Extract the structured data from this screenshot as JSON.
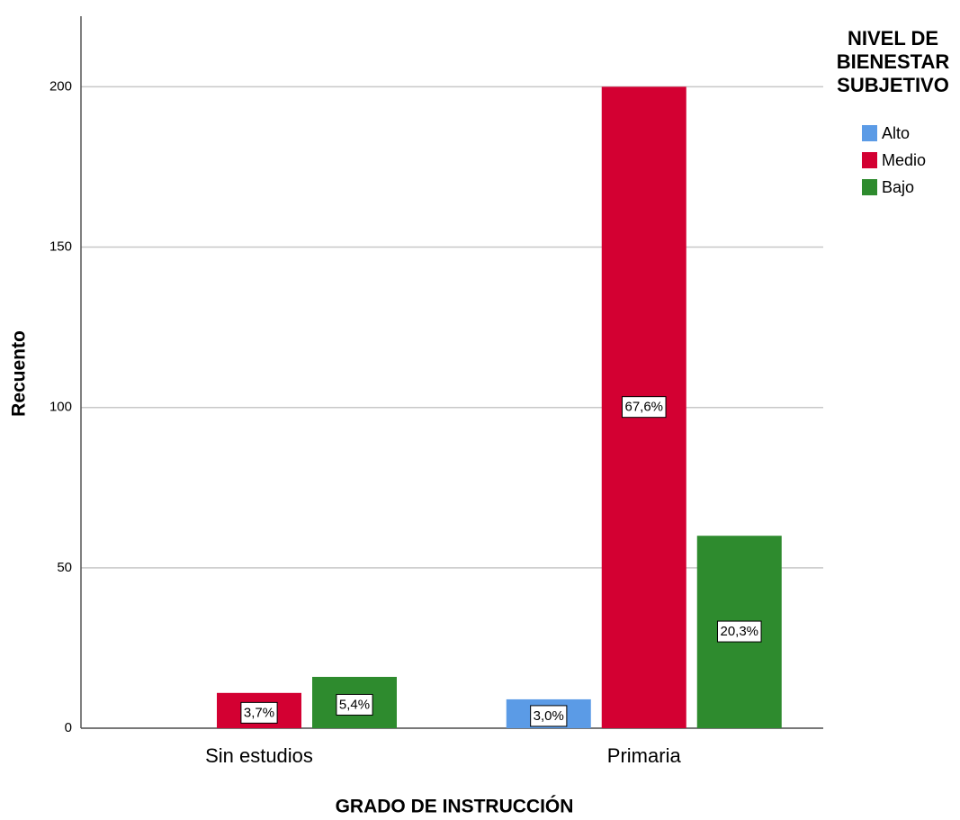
{
  "chart_data": {
    "type": "bar",
    "x_label": "GRADO DE INSTRUCCIÓN",
    "y_label": "Recuento",
    "legend_title": "NIVEL DE BIENESTAR SUBJETIVO",
    "categories": [
      "Sin estudios",
      "Primaria"
    ],
    "series": [
      {
        "name": "Alto",
        "color": "#5b9be6",
        "values": [
          null,
          9
        ],
        "value_labels": [
          null,
          "3,0%"
        ]
      },
      {
        "name": "Medio",
        "color": "#d30032",
        "values": [
          11,
          200
        ],
        "value_labels": [
          "3,7%",
          "67,6%"
        ]
      },
      {
        "name": "Bajo",
        "color": "#2e8b2e",
        "values": [
          16,
          60
        ],
        "value_labels": [
          "5,4%",
          "20,3%"
        ]
      }
    ],
    "ylim": [
      0,
      222
    ],
    "yticks": [
      0,
      50,
      100,
      150,
      200
    ],
    "grid": true,
    "legend": "right"
  }
}
